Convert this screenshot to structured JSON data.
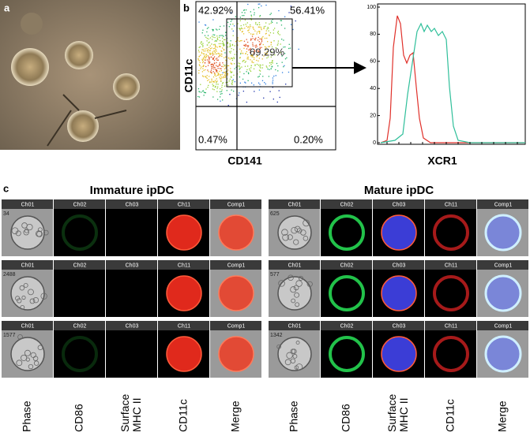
{
  "panel_a": {
    "label": "a"
  },
  "panel_b": {
    "label": "b",
    "quadrants": [
      "42.92%",
      "56.41%",
      "69.29%",
      "0.47%",
      "0.20%"
    ],
    "y_label": "CD11c",
    "x_label": "CD141",
    "histogram": {
      "yticks": [
        0,
        20,
        40,
        60,
        80,
        100
      ],
      "x_label": "XCR1"
    }
  },
  "panel_c": {
    "label": "c",
    "panels": [
      {
        "title": "Immature ipDC",
        "channels": [
          "Ch01",
          "Ch02",
          "Ch03",
          "Ch11",
          "Comp1"
        ],
        "rows": [
          "34",
          "2488",
          "1577"
        ],
        "bottom_labels": [
          [
            "Phase"
          ],
          [
            "CD86"
          ],
          [
            "Surface",
            "MHC II"
          ],
          [
            "CD11c"
          ],
          [
            "Merge"
          ]
        ]
      },
      {
        "title": "Mature ipDC",
        "channels": [
          "Ch01",
          "Ch02",
          "Ch03",
          "Ch11",
          "Comp1"
        ],
        "rows": [
          "625",
          "577",
          "1342"
        ],
        "bottom_labels": [
          [
            "Phase"
          ],
          [
            "CD86"
          ],
          [
            "Surface",
            "MHC II"
          ],
          [
            "CD11c"
          ],
          [
            "Merge"
          ]
        ]
      }
    ]
  }
}
